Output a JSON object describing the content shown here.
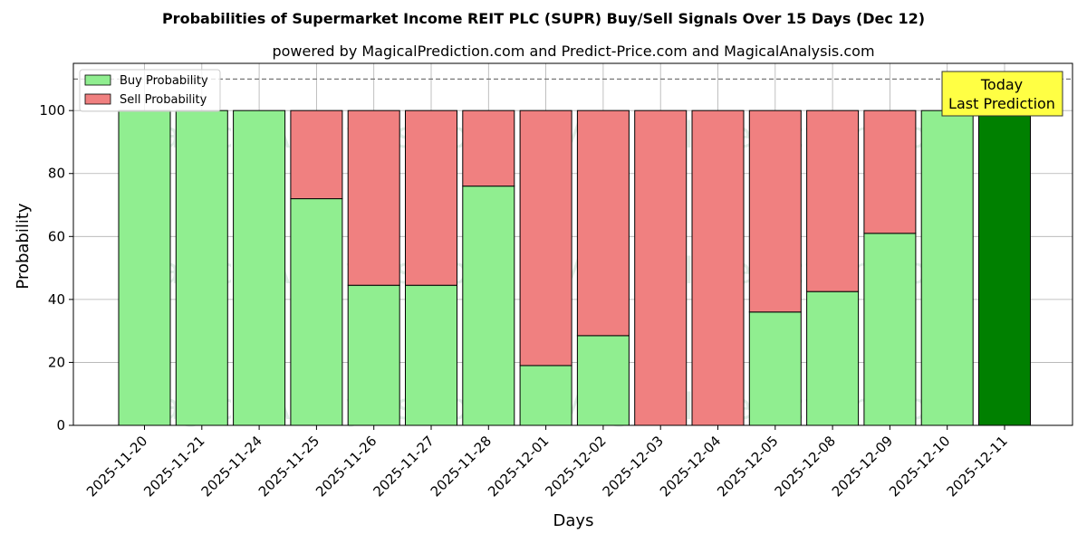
{
  "chart_data": {
    "type": "bar",
    "stacked": true,
    "title": "Probabilities of Supermarket Income REIT PLC (SUPR) Buy/Sell Signals Over 15 Days (Dec 12)",
    "subtitle": "powered by MagicalPrediction.com and Predict-Price.com and MagicalAnalysis.com",
    "xlabel": "Days",
    "ylabel": "Probability",
    "ylim": [
      0,
      115
    ],
    "yticks": [
      0,
      20,
      40,
      60,
      80,
      100
    ],
    "reference_line": 110,
    "grid": true,
    "legend_position": "top-left",
    "categories": [
      "2025-11-20",
      "2025-11-21",
      "2025-11-24",
      "2025-11-25",
      "2025-11-26",
      "2025-11-27",
      "2025-11-28",
      "2025-12-01",
      "2025-12-02",
      "2025-12-03",
      "2025-12-04",
      "2025-12-05",
      "2025-12-08",
      "2025-12-09",
      "2025-12-10",
      "2025-12-11"
    ],
    "series": [
      {
        "name": "Buy Probability",
        "color": "#90ee90",
        "values": [
          100,
          100,
          100,
          72,
          44.5,
          44.5,
          76,
          19,
          28.5,
          0,
          0,
          36,
          42.5,
          61,
          100,
          100
        ]
      },
      {
        "name": "Sell Probability",
        "color": "#f08080",
        "values": [
          0,
          0,
          0,
          28,
          55.5,
          55.5,
          24,
          81,
          71.5,
          100,
          100,
          64,
          57.5,
          39,
          0,
          0
        ]
      }
    ],
    "highlight": {
      "category": "2025-12-11",
      "color": "#008000"
    },
    "annotation": {
      "lines": [
        "Today",
        "Last Prediction"
      ],
      "background": "#ffff44"
    },
    "watermarks": [
      "MagicalAnalysis.com",
      "MagicalPrediction.com"
    ]
  }
}
